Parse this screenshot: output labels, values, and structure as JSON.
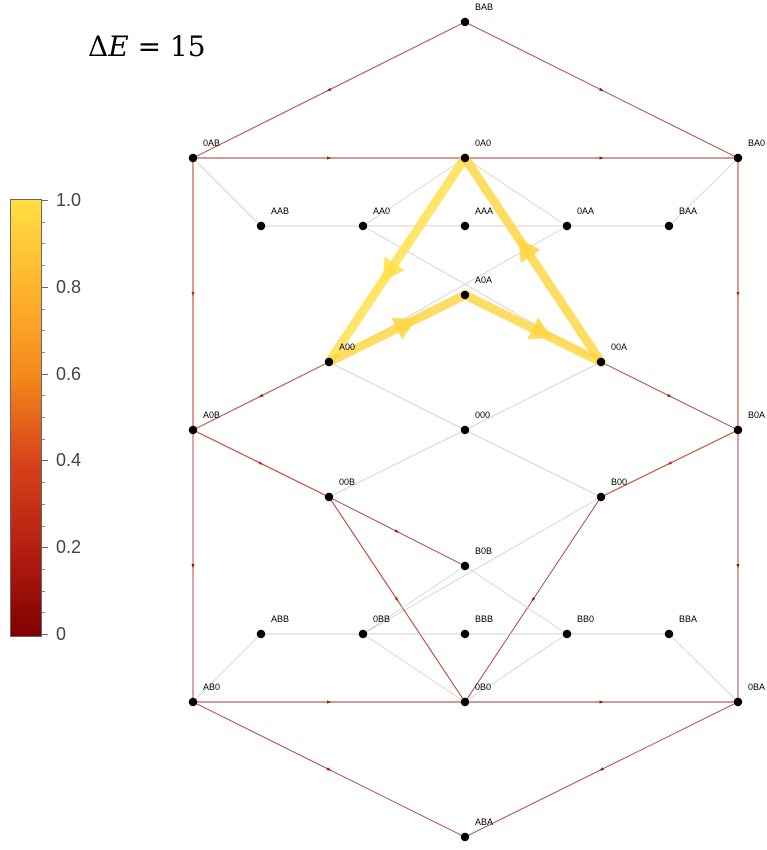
{
  "title": {
    "prefix": "Δ",
    "var": "E",
    "suffix": " = 15"
  },
  "colorbar": {
    "labels": [
      "1.0",
      "0.8",
      "0.6",
      "0.4",
      "0.2",
      "0"
    ],
    "colors": [
      "#ffe043",
      "#ffb52e",
      "#f48a1b",
      "#d8431b",
      "#b51f11",
      "#800000"
    ]
  },
  "nodes": [
    "BAB",
    "0AB",
    "0A0",
    "BA0",
    "AAB",
    "AA0",
    "AAA",
    "0AA",
    "BAA",
    "A0A",
    "A00",
    "00A",
    "A0B",
    "000",
    "B0A",
    "00B",
    "B00",
    "B0B",
    "ABB",
    "0BB",
    "BBB",
    "BB0",
    "BBA",
    "AB0",
    "0B0",
    "0BA",
    "ABA"
  ],
  "edges": [
    [
      "BAB",
      "0AB",
      0.1
    ],
    [
      "BAB",
      "BA0",
      0.1
    ],
    [
      "0AB",
      "0A0",
      0.1
    ],
    [
      "0A0",
      "BA0",
      0.1
    ],
    [
      "0AB",
      "A0B",
      0.2
    ],
    [
      "BA0",
      "B0A",
      0.2
    ],
    [
      "0AB",
      "AAB",
      0.05
    ],
    [
      "BA0",
      "BAA",
      0.05
    ],
    [
      "AAB",
      "AA0",
      0.05
    ],
    [
      "AA0",
      "AAA",
      0.05
    ],
    [
      "AAA",
      "0AA",
      0.05
    ],
    [
      "0AA",
      "BAA",
      0.05
    ],
    [
      "0A0",
      "AA0",
      0.05
    ],
    [
      "0A0",
      "0AA",
      0.05
    ],
    [
      "AA0",
      "00A",
      0.05
    ],
    [
      "0AA",
      "A00",
      0.05
    ],
    [
      "0A0",
      "A00",
      1.0
    ],
    [
      "00A",
      "0A0",
      0.95
    ],
    [
      "A0A",
      "00A",
      0.95
    ],
    [
      "A00",
      "A0A",
      0.95
    ],
    [
      "A00",
      "A0B",
      0.1
    ],
    [
      "00A",
      "B0A",
      0.1
    ],
    [
      "A00",
      "000",
      0.05
    ],
    [
      "00A",
      "000",
      0.05
    ],
    [
      "000",
      "00B",
      0.05
    ],
    [
      "000",
      "B00",
      0.05
    ],
    [
      "A0B",
      "00B",
      0.25
    ],
    [
      "B0A",
      "B00",
      0.25
    ],
    [
      "A0B",
      "AB0",
      0.1
    ],
    [
      "B0A",
      "0BA",
      0.1
    ],
    [
      "00B",
      "B0B",
      0.1
    ],
    [
      "B00",
      "0BB",
      0.05
    ],
    [
      "00B",
      "0B0",
      0.2
    ],
    [
      "B00",
      "0B0",
      0.1
    ],
    [
      "B0B",
      "BB0",
      0.05
    ],
    [
      "B0B",
      "0BB",
      0.05
    ],
    [
      "ABB",
      "0BB",
      0.05
    ],
    [
      "0BB",
      "BBB",
      0.05
    ],
    [
      "BBB",
      "BB0",
      0.05
    ],
    [
      "BB0",
      "BBA",
      0.05
    ],
    [
      "0BB",
      "0B0",
      0.05
    ],
    [
      "BB0",
      "0B0",
      0.05
    ],
    [
      "AB0",
      "ABB",
      0.05
    ],
    [
      "0BA",
      "BBA",
      0.05
    ],
    [
      "AB0",
      "0B0",
      0.1
    ],
    [
      "0B0",
      "0BA",
      0.1
    ],
    [
      "AB0",
      "ABA",
      0.1
    ],
    [
      "0BA",
      "ABA",
      0.1
    ]
  ]
}
